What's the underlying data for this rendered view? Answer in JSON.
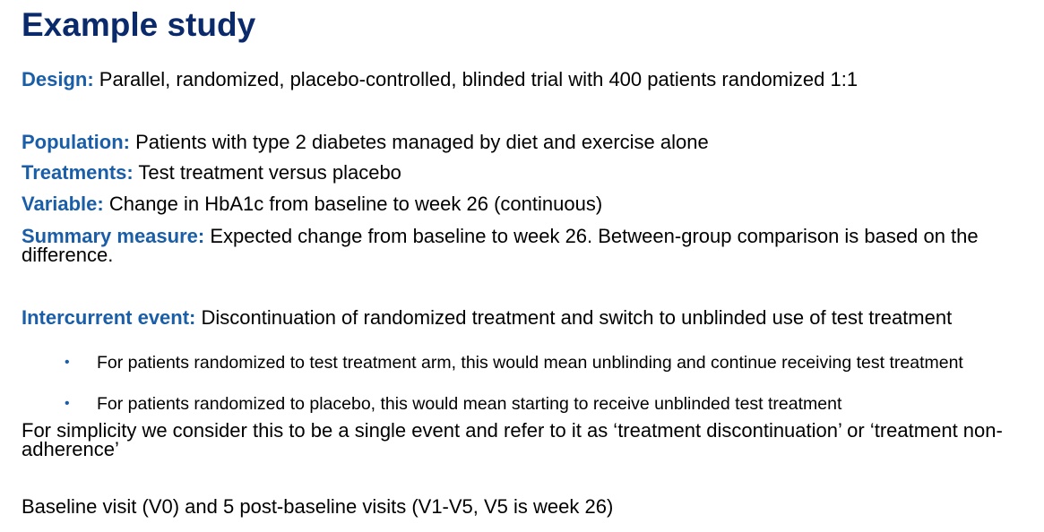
{
  "title": "Example study",
  "design": {
    "label": "Design:",
    "text": " Parallel, randomized, placebo-controlled, blinded trial with 400 patients randomized 1:1"
  },
  "population": {
    "label": "Population:",
    "text": " Patients with type 2 diabetes managed by diet and exercise alone"
  },
  "treatments": {
    "label": "Treatments:",
    "text": " Test treatment versus placebo"
  },
  "variable": {
    "label": "Variable:",
    "text": " Change in HbA1c from baseline to week 26 (continuous)"
  },
  "summary": {
    "label": "Summary measure:",
    "text": " Expected change from baseline to week 26. Between-group comparison is based on the difference."
  },
  "intercurrent": {
    "label": "Intercurrent event:",
    "text": " Discontinuation of randomized treatment and switch to unblinded use of test treatment",
    "bullets": [
      "For patients randomized to test treatment arm, this would mean unblinding and continue receiving test treatment",
      "For patients randomized to placebo, this would mean starting to receive unblinded test treatment"
    ],
    "bullet_symbol": "•"
  },
  "simplicity": "For simplicity we consider this to be a single event and refer to it as ‘treatment discontinuation’ or ‘treatment non-adherence’",
  "visits": "Baseline visit (V0) and 5 post-baseline visits (V1-V5, V5 is week 26)",
  "colors": {
    "title": "#0b2a6b",
    "label": "#1a5ea8",
    "text": "#000000"
  }
}
